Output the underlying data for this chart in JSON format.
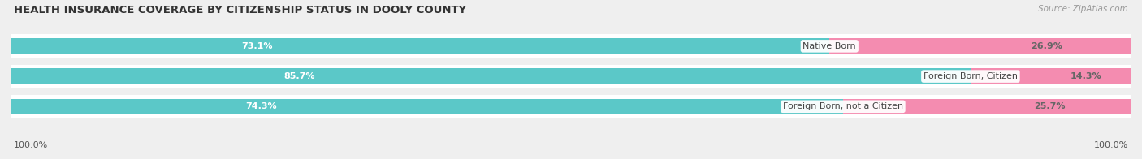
{
  "title": "HEALTH INSURANCE COVERAGE BY CITIZENSHIP STATUS IN DOOLY COUNTY",
  "source": "Source: ZipAtlas.com",
  "categories": [
    "Native Born",
    "Foreign Born, Citizen",
    "Foreign Born, not a Citizen"
  ],
  "with_coverage": [
    73.1,
    85.7,
    74.3
  ],
  "without_coverage": [
    26.9,
    14.3,
    25.7
  ],
  "color_with": "#5bc8c8",
  "color_without": "#f48cb0",
  "bg_color": "#efefef",
  "row_bg_color": "#e2e2e2",
  "title_fontsize": 9.5,
  "bar_label_fontsize": 8.0,
  "cat_label_fontsize": 8.0,
  "legend_fontsize": 8.5,
  "source_fontsize": 7.5,
  "axis_label": "100.0%"
}
